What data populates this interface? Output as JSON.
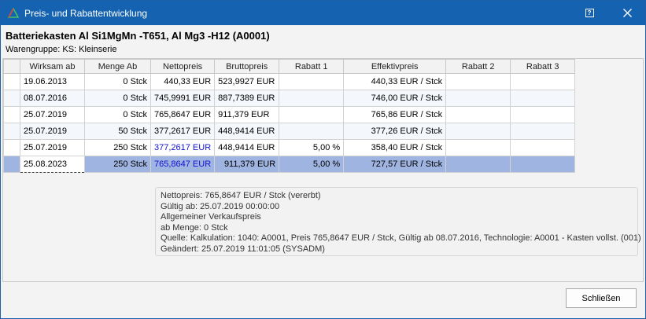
{
  "window": {
    "title": "Preis- und Rabattentwicklung",
    "help_icon": "help-icon",
    "close_icon": "close-icon",
    "accent": "#1563b0"
  },
  "header": {
    "article": "Batteriekasten Al Si1MgMn  -T651, Al Mg3 -H12 (A0001)",
    "group": "Warengruppe:  KS: Kleinserie"
  },
  "table": {
    "columns": [
      "Wirksam ab",
      "Menge Ab",
      "Nettopreis",
      "Bruttopreis",
      "Rabatt 1",
      "Effektivpreis",
      "Rabatt 2",
      "Rabatt 3"
    ],
    "rows": [
      {
        "date": "19.06.2013",
        "qty": "0 Stck",
        "net": "440,33 EUR",
        "gross": "523,9927 EUR",
        "r1": "",
        "eff": "440,33 EUR / Stck",
        "r2": "",
        "r3": ""
      },
      {
        "date": "08.07.2016",
        "qty": "0 Stck",
        "net": "745,9991 EUR",
        "gross": "887,7389 EUR",
        "r1": "",
        "eff": "746,00 EUR / Stck",
        "r2": "",
        "r3": ""
      },
      {
        "date": "25.07.2019",
        "qty": "0 Stck",
        "net": "765,8647 EUR",
        "gross": "911,379 EUR",
        "r1": "",
        "eff": "765,86 EUR / Stck",
        "r2": "",
        "r3": ""
      },
      {
        "date": "25.07.2019",
        "qty": "50 Stck",
        "net": "377,2617 EUR",
        "gross": "448,9414 EUR",
        "r1": "",
        "eff": "377,26 EUR / Stck",
        "r2": "",
        "r3": ""
      },
      {
        "date": "25.07.2019",
        "qty": "250 Stck",
        "net": "377,2617 EUR",
        "gross": "448,9414 EUR",
        "r1": "5,00 %",
        "eff": "358,40 EUR / Stck",
        "r2": "",
        "r3": ""
      },
      {
        "date": "25.08.2023",
        "qty": "250 Stck",
        "net": "765,8647 EUR",
        "gross": "911,379 EUR",
        "r1": "5,00 %",
        "eff": "727,57 EUR / Stck",
        "r2": "",
        "r3": ""
      }
    ],
    "selected_color": "#9fb4e0",
    "inherited_color": "#1010d0"
  },
  "info": {
    "lines": [
      "Nettopreis: 765,8647 EUR / Stck (vererbt)",
      "Gültig ab: 25.07.2019 00:00:00",
      "Allgemeiner Verkaufspreis",
      "ab Menge: 0 Stck",
      "Quelle: Kalkulation: 1040: A0001, Preis 765,8647 EUR / Stck, Gültig ab 08.07.2016, Technologie: A0001 - Kasten vollst. (001)",
      "Geändert: 25.07.2019 11:01:05 (SYSADM)"
    ]
  },
  "footer": {
    "close_label": "Schließen"
  }
}
